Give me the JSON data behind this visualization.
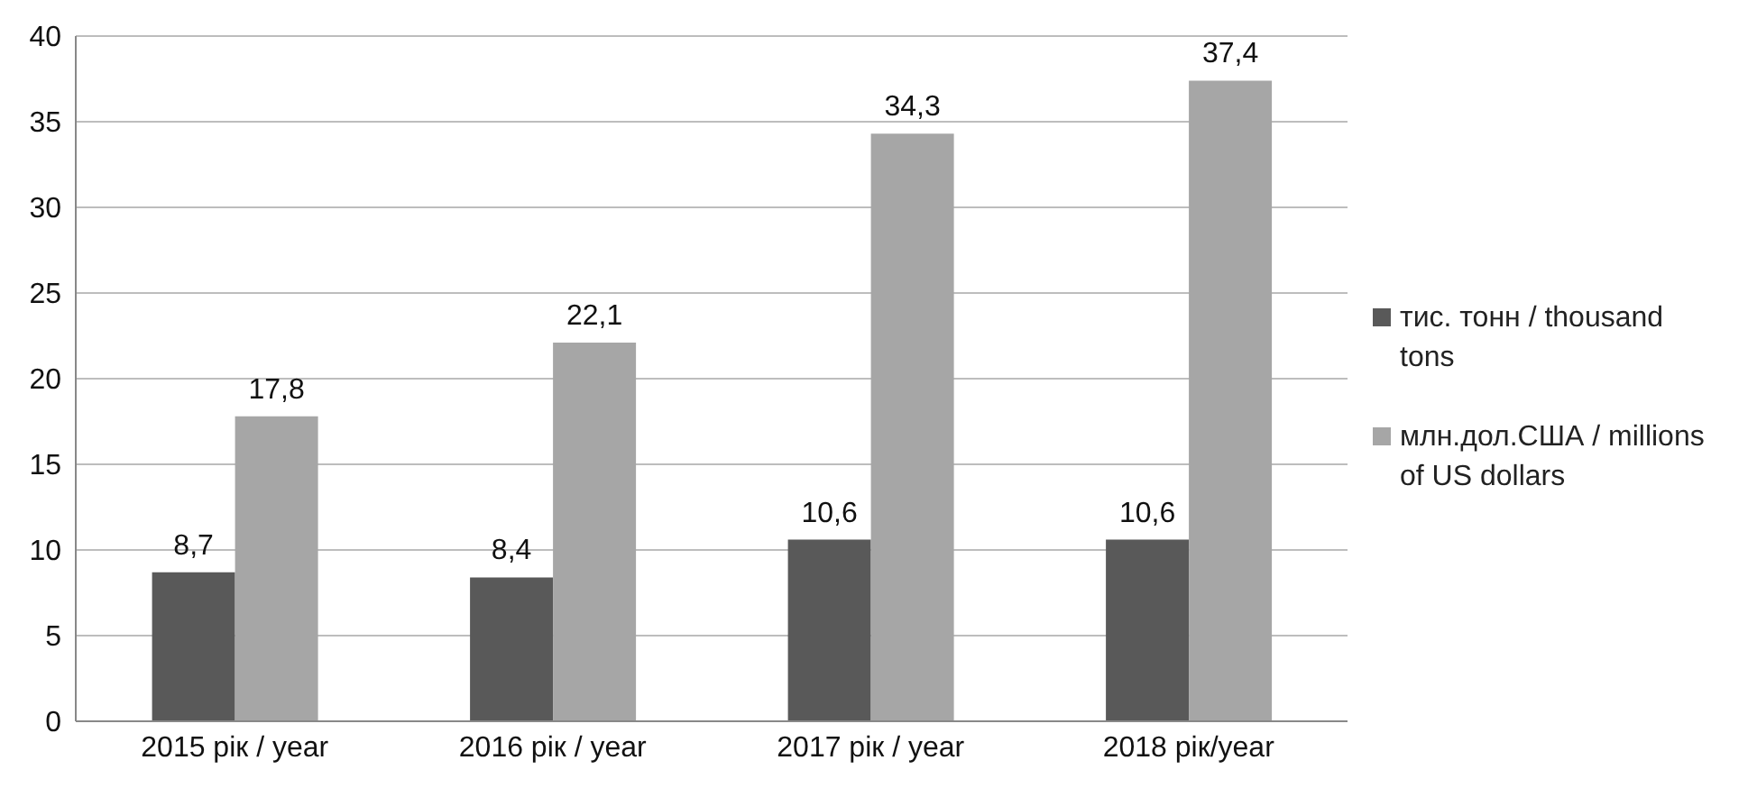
{
  "chart_data": {
    "type": "bar",
    "categories": [
      "2015 рік / year",
      "2016 рік / year",
      "2017 рік / year",
      "2018 рік/year"
    ],
    "series": [
      {
        "name": "тис. тонн / thousand tons",
        "color": "#595959",
        "values": [
          8.7,
          8.4,
          10.6,
          10.6
        ],
        "value_labels": [
          "8,7",
          "8,4",
          "10,6",
          "10,6"
        ]
      },
      {
        "name": "млн.дол.США / millions of US dollars",
        "color": "#a6a6a6",
        "values": [
          17.8,
          22.1,
          34.3,
          37.4
        ],
        "value_labels": [
          "17,8",
          "22,1",
          "34,3",
          "37,4"
        ]
      }
    ],
    "ylim": [
      0,
      40
    ],
    "yticks": [
      0,
      5,
      10,
      15,
      20,
      25,
      30,
      35,
      40
    ],
    "grid": "y",
    "legend": "right"
  }
}
